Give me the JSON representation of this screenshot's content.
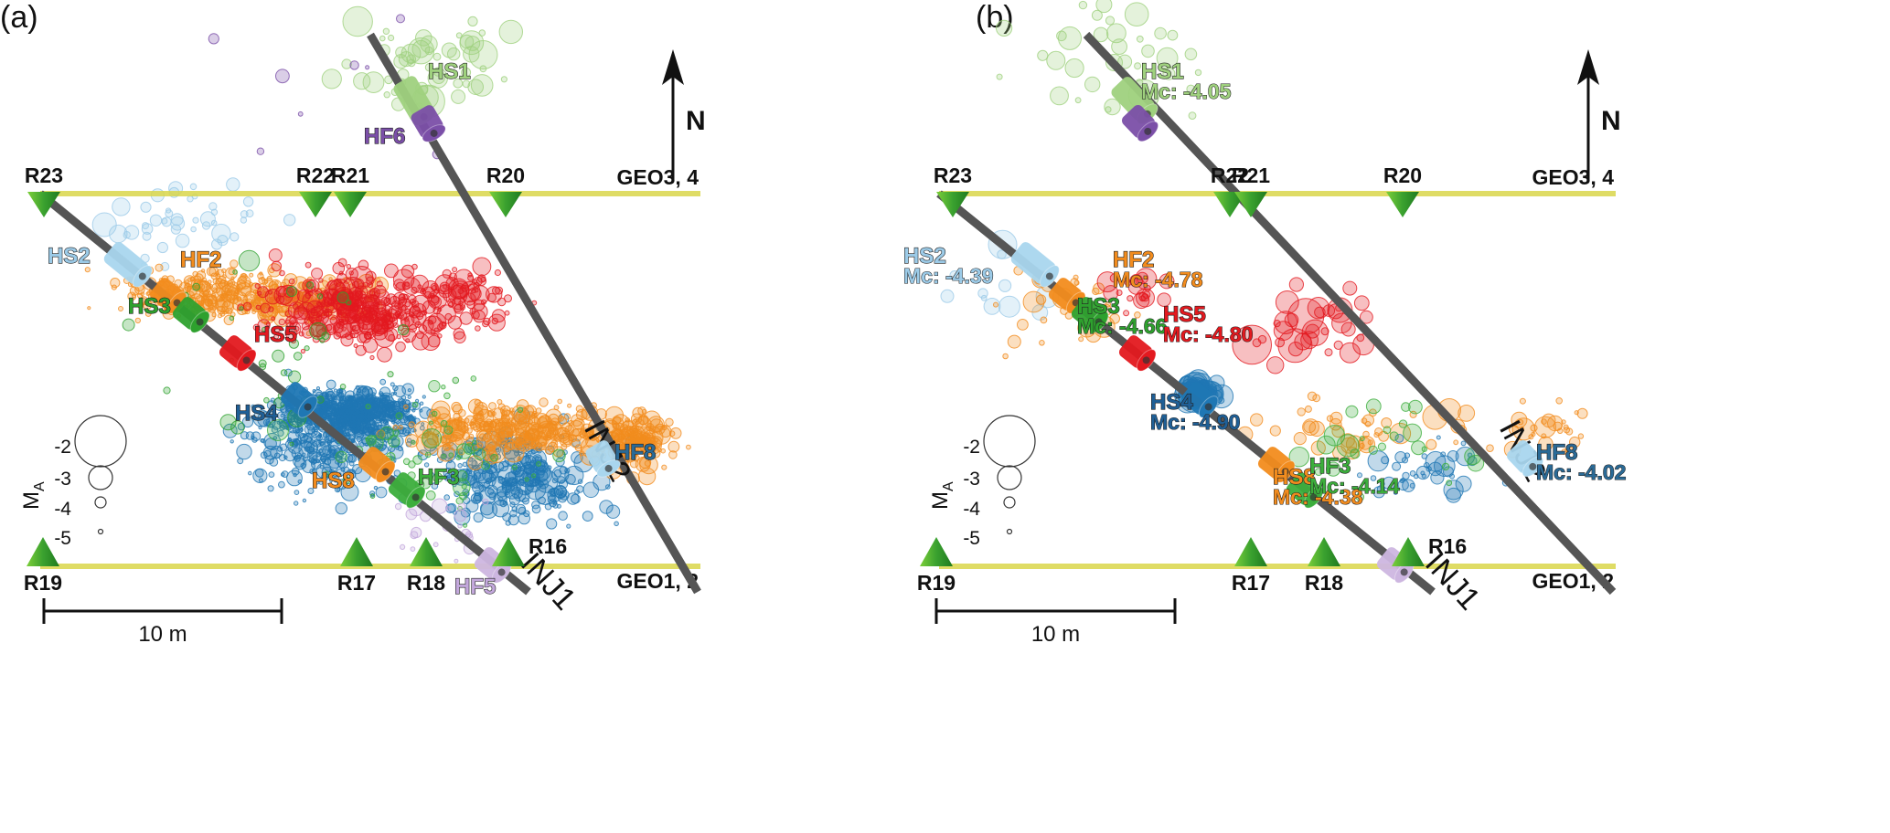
{
  "figure": {
    "panels": [
      {
        "id": "a",
        "label": "(a)",
        "show_mc": false,
        "event_density": "full"
      },
      {
        "id": "b",
        "label": "(b)",
        "show_mc": true,
        "event_density": "declustered"
      }
    ],
    "north_arrow": {
      "label": "N"
    },
    "scale_bar": {
      "label": "10 m",
      "length_m": 10
    },
    "magnitude_legend": {
      "title": "M",
      "title_subscript": "A",
      "entries": [
        {
          "label": "-2",
          "magnitude": -2
        },
        {
          "label": "-3",
          "magnitude": -3
        },
        {
          "label": "-4",
          "magnitude": -4
        },
        {
          "label": "-5",
          "magnitude": -5
        }
      ]
    },
    "tunnels": [
      {
        "id": "geo34",
        "label": "GEO3, 4",
        "position": "north"
      },
      {
        "id": "geo12",
        "label": "GEO1, 2",
        "position": "south"
      }
    ],
    "stations": [
      {
        "label": "R23",
        "tunnel": "north",
        "symbol": "triangle-down"
      },
      {
        "label": "R22",
        "tunnel": "north",
        "symbol": "triangle-down"
      },
      {
        "label": "R21",
        "tunnel": "north",
        "symbol": "triangle-down"
      },
      {
        "label": "R20",
        "tunnel": "north",
        "symbol": "triangle-down"
      },
      {
        "label": "R19",
        "tunnel": "south",
        "symbol": "triangle-up"
      },
      {
        "label": "R17",
        "tunnel": "south",
        "symbol": "triangle-up"
      },
      {
        "label": "R18",
        "tunnel": "south",
        "symbol": "triangle-up"
      },
      {
        "label": "R16",
        "tunnel": "south",
        "symbol": "triangle-up"
      }
    ],
    "boreholes": [
      {
        "label": "INJ1"
      },
      {
        "label": "INJ2"
      }
    ],
    "intervals": [
      {
        "label": "HS1",
        "borehole": "INJ2",
        "color": "#9fd17e",
        "mc": "Mc: -4.05"
      },
      {
        "label": "HF6",
        "borehole": "INJ2",
        "color": "#7b4fa8",
        "mc": ""
      },
      {
        "label": "HS2",
        "borehole": "INJ1",
        "color": "#a9d6ee",
        "mc": "Mc: -4.39"
      },
      {
        "label": "HF2",
        "borehole": "INJ1",
        "color": "#f28c1e",
        "mc": "Mc: -4.78"
      },
      {
        "label": "HS3",
        "borehole": "INJ1",
        "color": "#2ea12e",
        "mc": "Mc: -4.66"
      },
      {
        "label": "HS5",
        "borehole": "INJ1",
        "color": "#e3191f",
        "mc": "Mc: -4.80"
      },
      {
        "label": "HS4",
        "borehole": "INJ1",
        "color": "#1f77b4",
        "mc": "Mc: -4.90"
      },
      {
        "label": "HS8",
        "borehole": "INJ1",
        "color": "#f28c1e",
        "mc": "Mc: -4.38"
      },
      {
        "label": "HF3",
        "borehole": "INJ1",
        "color": "#3cae3c",
        "mc": "Mc: -4.14"
      },
      {
        "label": "HF5",
        "borehole": "INJ1",
        "color": "#cdb6e0",
        "mc": ""
      },
      {
        "label": "HF8",
        "borehole": "INJ2",
        "color": "#a9d6ee",
        "mc": "Mc: -4.02"
      }
    ],
    "colors": {
      "HS1": "#9fd17e",
      "HF6": "#7b4fa8",
      "HS2": "#9ccbe8",
      "HF2": "#f28c1e",
      "HS3": "#2ea12e",
      "HS5": "#e3191f",
      "HS4": "#1f77b4",
      "HS8": "#f28c1e",
      "HF3": "#3cae3c",
      "HF5": "#c3a8dc",
      "HF8": "#a9d6ee",
      "HF8_label": "#2a6a96",
      "station": "#3aa12f",
      "tunnel": "#d9d64a",
      "borehole": "#555555"
    }
  }
}
